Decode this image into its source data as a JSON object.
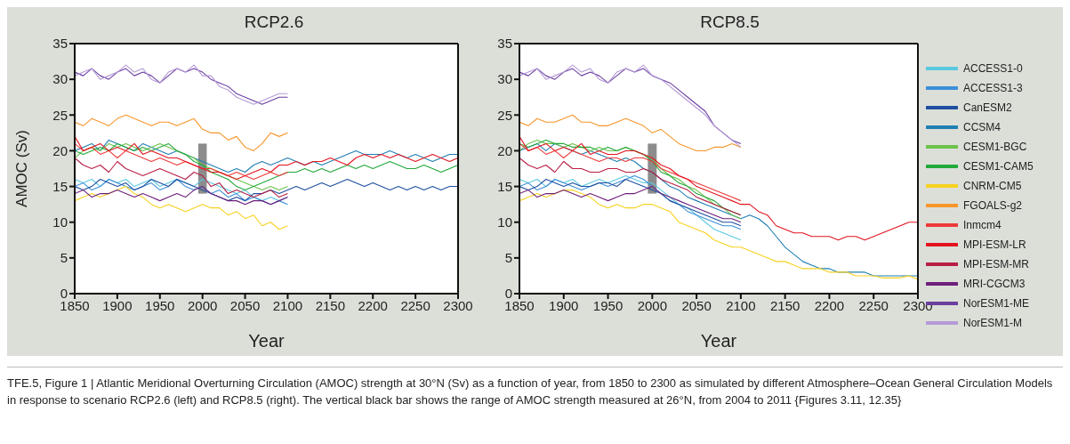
{
  "chart_data": [
    {
      "type": "line",
      "title": "RCP2.6",
      "xlabel": "Year",
      "ylabel": "AMOC (Sv)",
      "xlim": [
        1850,
        2300
      ],
      "ylim": [
        0,
        35
      ],
      "xticks": [
        1850,
        1900,
        1950,
        2000,
        2050,
        2100,
        2150,
        2200,
        2250,
        2300
      ],
      "yticks": [
        0,
        5,
        10,
        15,
        20,
        25,
        30,
        35
      ],
      "x": [
        1850,
        1860,
        1870,
        1880,
        1890,
        1900,
        1910,
        1920,
        1930,
        1940,
        1950,
        1960,
        1970,
        1980,
        1990,
        2000,
        2010,
        2020,
        2030,
        2040,
        2050,
        2060,
        2070,
        2080,
        2090,
        2100,
        2110,
        2120,
        2130,
        2140,
        2150,
        2160,
        2170,
        2180,
        2190,
        2200,
        2210,
        2220,
        2230,
        2240,
        2250,
        2260,
        2270,
        2280,
        2290,
        2300
      ],
      "series": [
        {
          "color": "#5bc8e0",
          "values": [
            16,
            15.5,
            16,
            15,
            16,
            15.5,
            16,
            15,
            15.5,
            16,
            15,
            15.5,
            16,
            15.5,
            15,
            16,
            15.5,
            15,
            14.5,
            14,
            14.5,
            13.5,
            13,
            13.5,
            13,
            13.5,
            null,
            null,
            null,
            null,
            null,
            null,
            null,
            null,
            null,
            null,
            null,
            null,
            null,
            null,
            null,
            null,
            null,
            null,
            null,
            null
          ]
        },
        {
          "color": "#3a8fd8",
          "values": [
            15,
            15.5,
            14.5,
            15,
            16,
            15.5,
            15,
            14.5,
            15,
            15.5,
            14.5,
            15,
            16,
            15,
            14.5,
            15,
            14,
            14.5,
            13.5,
            14,
            13,
            13.5,
            13,
            12.5,
            13,
            12.5,
            null,
            null,
            null,
            null,
            null,
            null,
            null,
            null,
            null,
            null,
            null,
            null,
            null,
            null,
            null,
            null,
            null,
            null,
            null,
            null
          ]
        },
        {
          "color": "#1f4fa0",
          "values": [
            15,
            14.5,
            15,
            16,
            15.5,
            15,
            15.5,
            14.5,
            15,
            16,
            15.5,
            15,
            16,
            15.5,
            15,
            14.5,
            14,
            13.5,
            13,
            13.5,
            13,
            14,
            14,
            14.5,
            14,
            14.5,
            15,
            14.5,
            15,
            15.5,
            15,
            15.5,
            16,
            15.5,
            15,
            15.5,
            15,
            14.5,
            15,
            14.5,
            15,
            14.5,
            15,
            14.5,
            15,
            15
          ]
        },
        {
          "color": "#1f7fb4",
          "values": [
            20,
            20.5,
            21,
            20,
            21.5,
            21,
            20.5,
            20,
            21,
            20.5,
            20,
            19.5,
            20,
            19.5,
            19,
            18.5,
            18,
            17.5,
            17,
            17.5,
            17,
            18,
            18.5,
            18,
            18.5,
            19,
            18.5,
            18,
            18.5,
            18,
            18.5,
            19,
            19.5,
            20,
            19.5,
            19.5,
            19.5,
            20,
            19.5,
            19,
            19.5,
            19,
            18.5,
            19,
            19.5,
            19.5
          ]
        },
        {
          "color": "#6cc24a",
          "values": [
            19,
            20,
            20.5,
            20,
            21,
            20.5,
            21,
            20.5,
            20,
            20.5,
            21,
            20.5,
            20,
            19.5,
            19,
            18,
            17.5,
            17,
            16.5,
            16,
            15.5,
            15,
            14.5,
            15,
            14.5,
            15,
            null,
            null,
            null,
            null,
            null,
            null,
            null,
            null,
            null,
            null,
            null,
            null,
            null,
            null,
            null,
            null,
            null,
            null,
            null,
            null
          ]
        },
        {
          "color": "#22a83a",
          "values": [
            20,
            19.5,
            20,
            20.5,
            20,
            21,
            20.5,
            20,
            20.5,
            20,
            20.5,
            21,
            20,
            19.5,
            18.5,
            18,
            17,
            16.5,
            16,
            15,
            14.5,
            15,
            15.5,
            16,
            16.5,
            17,
            17,
            17.5,
            17,
            17.5,
            17,
            17.5,
            18,
            17.5,
            18,
            17.5,
            18,
            18.5,
            18,
            17.5,
            17.5,
            18,
            17.5,
            17,
            17.5,
            18
          ]
        },
        {
          "color": "#f7d11e",
          "values": [
            13,
            13.5,
            14,
            13.5,
            14,
            14.5,
            15,
            14,
            13.5,
            12.5,
            12,
            12.5,
            12,
            11.5,
            12,
            12.5,
            12,
            12,
            11,
            11.5,
            10.5,
            11,
            9.5,
            10,
            9,
            9.5,
            null,
            null,
            null,
            null,
            null,
            null,
            null,
            null,
            null,
            null,
            null,
            null,
            null,
            null,
            null,
            null,
            null,
            null,
            null,
            null
          ]
        },
        {
          "color": "#f7962b",
          "values": [
            24,
            23.5,
            24.5,
            24,
            23.5,
            24.5,
            25,
            24.5,
            24,
            23.5,
            24,
            24,
            23.5,
            24,
            24.5,
            23,
            22.5,
            22.5,
            21.5,
            22,
            20.5,
            20,
            21,
            22.5,
            22,
            22.5,
            null,
            null,
            null,
            null,
            null,
            null,
            null,
            null,
            null,
            null,
            null,
            null,
            null,
            null,
            null,
            null,
            null,
            null,
            null,
            null
          ]
        },
        {
          "color": "#ee3a3a",
          "values": [
            21,
            20,
            20.5,
            19.5,
            20,
            19,
            20,
            19.5,
            19,
            18.5,
            19,
            18.5,
            18,
            18.5,
            18,
            17.5,
            17.5,
            17,
            16.5,
            17,
            16.5,
            16,
            16.5,
            17,
            16.5,
            17,
            null,
            null,
            null,
            null,
            null,
            null,
            null,
            null,
            null,
            null,
            null,
            null,
            null,
            null,
            null,
            null,
            null,
            null,
            null,
            null
          ]
        },
        {
          "color": "#e3141f",
          "values": [
            22,
            20,
            20.5,
            21,
            20,
            20.5,
            20,
            21,
            19.5,
            20,
            19.5,
            19,
            19,
            18.5,
            18,
            17.5,
            17,
            17,
            16.5,
            16,
            16.5,
            17,
            17.5,
            17,
            18,
            18,
            18.5,
            18,
            18.5,
            18.5,
            19,
            18.5,
            18,
            19,
            19.5,
            19,
            19.5,
            19,
            19.5,
            19,
            18.5,
            19,
            19.5,
            19,
            18.5,
            19
          ]
        },
        {
          "color": "#b81f45",
          "values": [
            19,
            18,
            17.5,
            18,
            17,
            18.5,
            17.5,
            17,
            16.5,
            17,
            17.5,
            17,
            16.5,
            16,
            17,
            16.5,
            15,
            15.5,
            14,
            14.5,
            14,
            13.5,
            14,
            14.5,
            13.5,
            14,
            null,
            null,
            null,
            null,
            null,
            null,
            null,
            null,
            null,
            null,
            null,
            null,
            null,
            null,
            null,
            null,
            null,
            null,
            null,
            null
          ]
        },
        {
          "color": "#6e1f7a",
          "values": [
            14,
            14.5,
            13.5,
            14,
            14,
            14.5,
            14,
            13.5,
            14,
            13.5,
            13,
            13.5,
            14,
            13.5,
            14.5,
            15,
            14,
            13.5,
            13,
            13,
            12.5,
            13,
            13,
            12.5,
            13,
            13.5,
            null,
            null,
            null,
            null,
            null,
            null,
            null,
            null,
            null,
            null,
            null,
            null,
            null,
            null,
            null,
            null,
            null,
            null,
            null,
            null
          ]
        },
        {
          "color": "#6a3fa0",
          "values": [
            31,
            30.5,
            31.5,
            30.5,
            30,
            31,
            31.5,
            30.5,
            31,
            30.5,
            29.5,
            30.5,
            31.5,
            31,
            31.5,
            31,
            30,
            29.5,
            29,
            28,
            27.5,
            27,
            26.5,
            27,
            27.5,
            27.5,
            null,
            null,
            null,
            null,
            null,
            null,
            null,
            null,
            null,
            null,
            null,
            null,
            null,
            null,
            null,
            null,
            null,
            null,
            null,
            null
          ]
        },
        {
          "color": "#b49ad6",
          "values": [
            30.5,
            31,
            31.5,
            30,
            30.5,
            31,
            32,
            31,
            31.5,
            30,
            29.5,
            31,
            31.5,
            31,
            32,
            30.5,
            30.5,
            29,
            28.5,
            27.5,
            27,
            26.5,
            27,
            27.5,
            28,
            28,
            null,
            null,
            null,
            null,
            null,
            null,
            null,
            null,
            null,
            null,
            null,
            null,
            null,
            null,
            null,
            null,
            null,
            null,
            null,
            null
          ]
        },
        {
          "type": "bar",
          "x": [
            2000
          ],
          "base": [
            14
          ],
          "values": [
            7
          ],
          "color": "#7f7f7f"
        }
      ]
    },
    {
      "type": "line",
      "title": "RCP8.5",
      "xlabel": "Year",
      "xlim": [
        1850,
        2300
      ],
      "ylim": [
        0,
        35
      ],
      "xticks": [
        1850,
        1900,
        1950,
        2000,
        2050,
        2100,
        2150,
        2200,
        2250,
        2300
      ],
      "yticks": [
        0,
        5,
        10,
        15,
        20,
        25,
        30,
        35
      ],
      "legend": "right",
      "annotations": [
        "TFE.5, Figure 1 | Atlantic Meridional Overturning Circulation (AMOC) strength at 30°N (Sv) as a function of year, from 1850 to 2300 as simulated by different Atmosphere–Ocean General Circulation Models in response to scenario RCP2.6 (left) and RCP8.5 (right). The vertical black bar shows the range of AMOC strength measured at 26°N, from 2004 to 2011 {Figures 3.11, 12.35}"
      ],
      "x": [
        1850,
        1860,
        1870,
        1880,
        1890,
        1900,
        1910,
        1920,
        1930,
        1940,
        1950,
        1960,
        1970,
        1980,
        1990,
        2000,
        2010,
        2020,
        2030,
        2040,
        2050,
        2060,
        2070,
        2080,
        2090,
        2100,
        2110,
        2120,
        2130,
        2140,
        2150,
        2160,
        2170,
        2180,
        2190,
        2200,
        2210,
        2220,
        2230,
        2240,
        2250,
        2260,
        2270,
        2280,
        2290,
        2300
      ],
      "series": [
        {
          "name": "ACCESS1-0",
          "color": "#5bc8e0",
          "values": [
            16,
            15.5,
            16,
            15,
            16,
            15.5,
            16,
            15,
            15.5,
            16,
            15.5,
            16,
            16.5,
            16,
            15.5,
            15.5,
            14.5,
            13.5,
            12.5,
            12,
            11,
            10,
            9,
            8.5,
            8,
            7.5,
            null,
            null,
            null,
            null,
            null,
            null,
            null,
            null,
            null,
            null,
            null,
            null,
            null,
            null,
            null,
            null,
            null,
            null,
            null,
            null
          ]
        },
        {
          "name": "ACCESS1-3",
          "color": "#3a8fd8",
          "values": [
            15,
            15.5,
            14.5,
            15,
            16,
            15.5,
            15,
            14.5,
            15,
            15.5,
            15,
            15.5,
            16,
            16.5,
            16,
            15,
            14,
            13,
            12.5,
            11.5,
            11,
            10.5,
            10,
            9.5,
            9.5,
            9,
            null,
            null,
            null,
            null,
            null,
            null,
            null,
            null,
            null,
            null,
            null,
            null,
            null,
            null,
            null,
            null,
            null,
            null,
            null,
            null
          ]
        },
        {
          "name": "CanESM2",
          "color": "#1f4fa0",
          "values": [
            15,
            14.5,
            15,
            16,
            15.5,
            15,
            15.5,
            15,
            15,
            15.5,
            15.5,
            15,
            16,
            15.5,
            15,
            14.5,
            14,
            13,
            12.5,
            12,
            11.5,
            11,
            10.5,
            10,
            10,
            9.5,
            null,
            null,
            null,
            null,
            null,
            null,
            null,
            null,
            null,
            null,
            null,
            null,
            null,
            null,
            null,
            null,
            null,
            null,
            null,
            null
          ]
        },
        {
          "name": "CCSM4",
          "color": "#1f7fb4",
          "values": [
            20,
            20.5,
            21,
            20,
            21,
            20.5,
            20,
            19.5,
            20,
            19.5,
            19,
            18.5,
            19,
            18.5,
            17.5,
            17,
            16,
            15,
            14.5,
            13.5,
            13,
            12.5,
            12,
            11.5,
            11,
            10.5,
            11,
            10.5,
            9.5,
            8,
            6.5,
            5.5,
            4.5,
            4,
            3.5,
            3.5,
            3,
            3,
            3,
            3,
            2.5,
            2.5,
            2.5,
            2.5,
            2.5,
            2.5
          ]
        },
        {
          "name": "CESM1-BGC",
          "color": "#6cc24a",
          "values": [
            20,
            21,
            21.5,
            21,
            21,
            20.5,
            21,
            20.5,
            20,
            20.5,
            20,
            20,
            20.5,
            20,
            19.5,
            19,
            17.5,
            16.5,
            16,
            15,
            14.5,
            13.5,
            12.5,
            12,
            11,
            10.5,
            null,
            null,
            null,
            null,
            null,
            null,
            null,
            null,
            null,
            null,
            null,
            null,
            null,
            null,
            null,
            null,
            null,
            null,
            null,
            null
          ]
        },
        {
          "name": "CESM1-CAM5",
          "color": "#22a83a",
          "values": [
            21,
            20.5,
            21,
            21.5,
            21,
            21,
            20.5,
            20.5,
            20.5,
            20,
            20.5,
            20,
            20.5,
            20,
            19.5,
            18.5,
            17,
            16.5,
            15.5,
            15,
            14,
            13.5,
            13,
            12,
            11.5,
            11,
            null,
            null,
            null,
            null,
            null,
            null,
            null,
            null,
            null,
            null,
            null,
            null,
            null,
            null,
            null,
            null,
            null,
            null,
            null,
            null
          ]
        },
        {
          "name": "CNRM-CM5",
          "color": "#f7d11e",
          "values": [
            13,
            13.5,
            14,
            13.5,
            14,
            14.5,
            14.5,
            14,
            13.5,
            12.5,
            12,
            12.5,
            12,
            12,
            12.5,
            12.5,
            12,
            11.5,
            10,
            9.5,
            9,
            8.5,
            7.5,
            7,
            6.5,
            6.5,
            6,
            5.5,
            5,
            4.5,
            4.5,
            4,
            3.5,
            3.5,
            3.5,
            3,
            3,
            3,
            2.5,
            2.5,
            2.5,
            2.2,
            2.2,
            2.2,
            2.5,
            2
          ]
        },
        {
          "name": "FGOALS-g2",
          "color": "#f7962b",
          "values": [
            24,
            23.5,
            24.5,
            24,
            24,
            24.5,
            25,
            24,
            24,
            23.5,
            23.5,
            24,
            24.5,
            24,
            23.5,
            22.5,
            23,
            22,
            21,
            20.5,
            20,
            20,
            20.5,
            20.5,
            21,
            20.5,
            null,
            null,
            null,
            null,
            null,
            null,
            null,
            null,
            null,
            null,
            null,
            null,
            null,
            null,
            null,
            null,
            null,
            null,
            null,
            null
          ]
        },
        {
          "name": "Inmcm4",
          "color": "#ee3a3a",
          "values": [
            21,
            20,
            20.5,
            19.5,
            20,
            19,
            20,
            19.5,
            19,
            18.5,
            19,
            19,
            18.5,
            19,
            19,
            18.5,
            17.5,
            17,
            16.5,
            16,
            15.5,
            15,
            14.5,
            14,
            13.5,
            13,
            null,
            null,
            null,
            null,
            null,
            null,
            null,
            null,
            null,
            null,
            null,
            null,
            null,
            null,
            null,
            null,
            null,
            null,
            null,
            null
          ]
        },
        {
          "name": "MPI-ESM-LR",
          "color": "#e3141f",
          "values": [
            22,
            20,
            20.5,
            21,
            20,
            20.5,
            20,
            21,
            19.5,
            20,
            19.5,
            19.5,
            20,
            20,
            19.5,
            19,
            18,
            17.5,
            16.5,
            16,
            15,
            14.5,
            14,
            13.5,
            13,
            12.5,
            12.5,
            11.5,
            11,
            9.5,
            9,
            8.5,
            8.5,
            8,
            8,
            8,
            7.5,
            8,
            8,
            7.5,
            8,
            8.5,
            9,
            9.5,
            10,
            10
          ]
        },
        {
          "name": "MPI-ESM-MR",
          "color": "#b81f45",
          "values": [
            19,
            18,
            17.5,
            18,
            17,
            18.5,
            17.5,
            17.5,
            17,
            17,
            17.5,
            17.5,
            17,
            17,
            17.5,
            17,
            16,
            15.5,
            15,
            14.5,
            13.5,
            13,
            12.5,
            12,
            11.5,
            11,
            null,
            null,
            null,
            null,
            null,
            null,
            null,
            null,
            null,
            null,
            null,
            null,
            null,
            null,
            null,
            null,
            null,
            null,
            null,
            null
          ]
        },
        {
          "name": "MRI-CGCM3",
          "color": "#6e1f7a",
          "values": [
            14,
            14.5,
            13.5,
            14,
            14,
            14.5,
            14,
            13.5,
            14,
            13.5,
            13,
            13.5,
            14,
            14,
            14.5,
            15,
            14,
            13.5,
            13,
            12.5,
            12,
            11.5,
            11,
            10.5,
            10.5,
            10,
            null,
            null,
            null,
            null,
            null,
            null,
            null,
            null,
            null,
            null,
            null,
            null,
            null,
            null,
            null,
            null,
            null,
            null,
            null,
            null
          ]
        },
        {
          "name": "NorESM1-ME",
          "color": "#6a3fa0",
          "values": [
            31,
            30.5,
            31.5,
            30.5,
            30,
            31,
            31.5,
            30.5,
            31,
            30.5,
            29.5,
            30.5,
            31.5,
            31,
            31.5,
            30.5,
            30,
            29.5,
            28.5,
            27.5,
            26.5,
            25.5,
            23.5,
            22.5,
            21.5,
            21,
            null,
            null,
            null,
            null,
            null,
            null,
            null,
            null,
            null,
            null,
            null,
            null,
            null,
            null,
            null,
            null,
            null,
            null,
            null,
            null
          ]
        },
        {
          "name": "NorESM1-M",
          "color": "#b49ad6",
          "values": [
            30.5,
            31,
            31.5,
            30,
            30.5,
            31,
            32,
            31,
            31.5,
            30,
            29.5,
            31,
            31.5,
            31,
            32,
            30.5,
            30,
            29,
            28,
            27,
            26,
            25,
            23.5,
            22.5,
            21.5,
            20.5,
            null,
            null,
            null,
            null,
            null,
            null,
            null,
            null,
            null,
            null,
            null,
            null,
            null,
            null,
            null,
            null,
            null,
            null,
            null,
            null
          ]
        },
        {
          "type": "bar",
          "x": [
            2000
          ],
          "base": [
            14
          ],
          "values": [
            7
          ],
          "color": "#7f7f7f"
        }
      ]
    }
  ]
}
